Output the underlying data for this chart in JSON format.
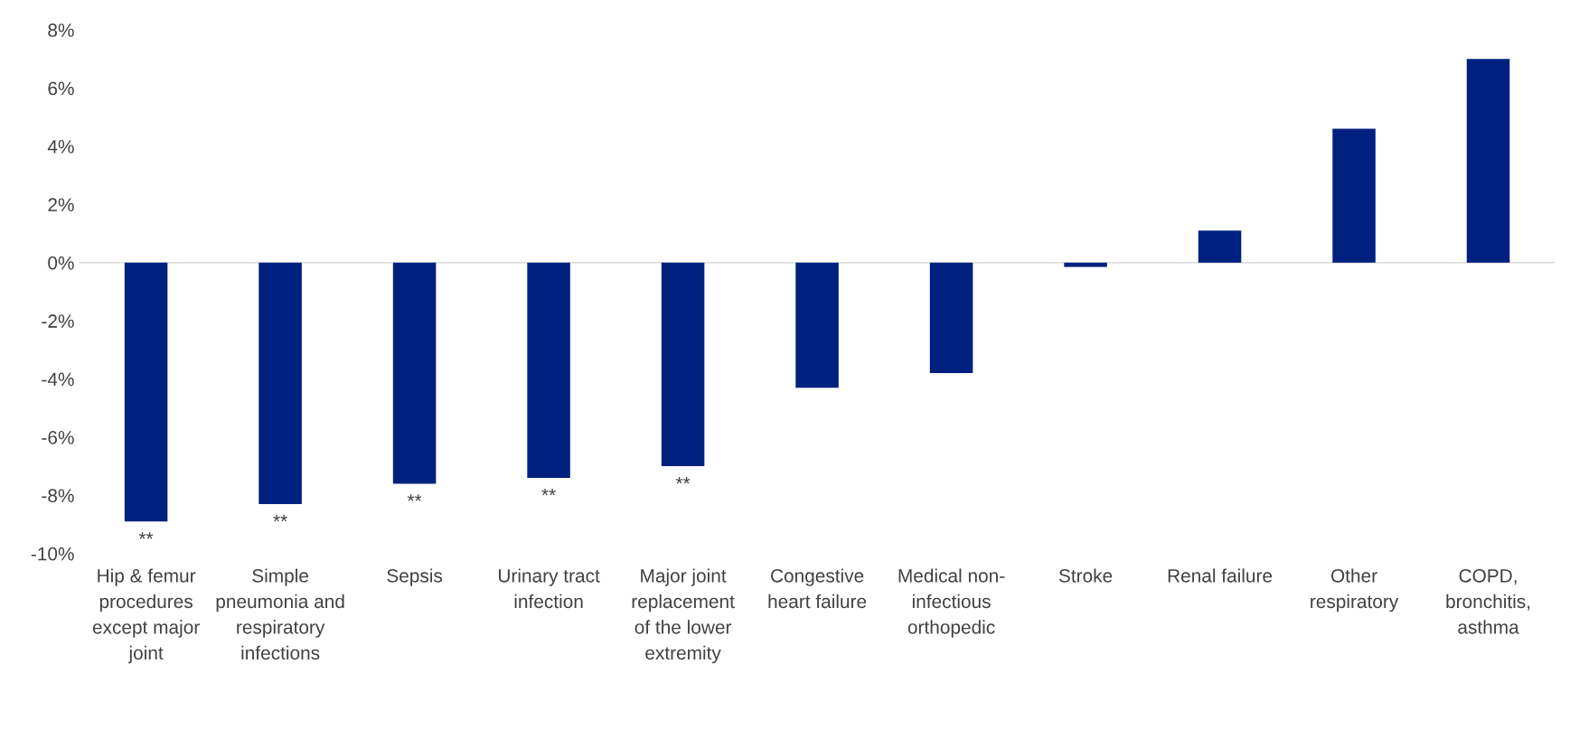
{
  "chart_data": {
    "type": "bar",
    "categories": [
      "Hip & femur procedures except major joint",
      "Simple pneumonia and respiratory infections",
      "Sepsis",
      "Urinary tract infection",
      "Major joint replacement of the lower extremity",
      "Congestive heart failure",
      "Medical non-infectious orthopedic",
      "Stroke",
      "Renal failure",
      "Other respiratory",
      "COPD, bronchitis, asthma"
    ],
    "values": [
      -8.9,
      -8.3,
      -7.6,
      -7.4,
      -7.0,
      -4.3,
      -3.8,
      -0.15,
      1.1,
      4.6,
      7.0
    ],
    "color": "#002080",
    "ylim": [
      -10,
      8
    ],
    "yticks": [
      {
        "value": -10,
        "label": "-10%"
      },
      {
        "value": -8,
        "label": "-8%"
      },
      {
        "value": -6,
        "label": "-6%"
      },
      {
        "value": -4,
        "label": "-4%"
      },
      {
        "value": -2,
        "label": "-2%"
      },
      {
        "value": 0,
        "label": "0%"
      },
      {
        "value": 2,
        "label": "2%"
      },
      {
        "value": 4,
        "label": "4%"
      },
      {
        "value": 6,
        "label": "6%"
      },
      {
        "value": 8,
        "label": "8%"
      }
    ],
    "annotations": [
      {
        "text": "**",
        "x": "Hip & femur procedures except major joint",
        "y": -8.9
      },
      {
        "text": "**",
        "x": "Simple pneumonia and respiratory infections",
        "y": -8.3
      },
      {
        "text": "**",
        "x": "Sepsis",
        "y": -7.6
      },
      {
        "text": "**",
        "x": "Urinary tract infection",
        "y": -7.4
      },
      {
        "text": "**",
        "x": "Major joint replacement of the lower extremity",
        "y": -7.0
      }
    ],
    "ref_lines": [
      {
        "axis": "y",
        "value": 0,
        "color": "#d9d9d9"
      }
    ],
    "grid": false
  }
}
